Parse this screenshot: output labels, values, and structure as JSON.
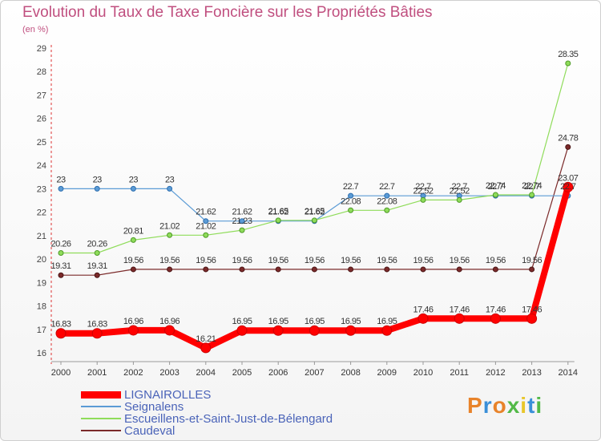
{
  "chart_data": {
    "type": "line",
    "title": "Evolution du Taux de Taxe Foncière sur les Propriétés Bâties",
    "subtitle": "(en %)",
    "xlabel": "",
    "ylabel": "",
    "x": [
      "2000",
      "2001",
      "2002",
      "2003",
      "2004",
      "2005",
      "2006",
      "2007",
      "2008",
      "2009",
      "2010",
      "2011",
      "2012",
      "2013",
      "2014"
    ],
    "ylim": [
      16,
      29
    ],
    "yticks": [
      16,
      17,
      18,
      19,
      20,
      21,
      22,
      23,
      24,
      25,
      26,
      27,
      28,
      29
    ],
    "grid": false,
    "legend_position": "bottom-left",
    "series": [
      {
        "name": "LIGNAIROLLES",
        "color": "#ff0000",
        "values": [
          16.83,
          16.83,
          16.96,
          16.96,
          16.21,
          16.95,
          16.95,
          16.95,
          16.95,
          16.95,
          17.46,
          17.46,
          17.46,
          17.46,
          23.07
        ]
      },
      {
        "name": "Seignalens",
        "color": "#5b9bd5",
        "values": [
          23,
          23,
          23,
          23,
          21.62,
          21.62,
          21.62,
          21.62,
          22.7,
          22.7,
          22.7,
          22.7,
          22.7,
          22.7,
          22.7
        ]
      },
      {
        "name": "Escueillens-et-Saint-Just-de-Bélengard",
        "color": "#8fdc5a",
        "values": [
          20.26,
          20.26,
          20.81,
          21.02,
          21.02,
          21.23,
          21.65,
          21.65,
          22.08,
          22.08,
          22.52,
          22.52,
          22.74,
          22.74,
          28.35
        ]
      },
      {
        "name": "Caudeval",
        "color": "#7b2a2a",
        "values": [
          19.31,
          19.31,
          19.56,
          19.56,
          19.56,
          19.56,
          19.56,
          19.56,
          19.56,
          19.56,
          19.56,
          19.56,
          19.56,
          19.56,
          24.78
        ]
      }
    ],
    "point_labels": {
      "LIGNAIROLLES": [
        "16.83",
        "16.83",
        "16.96",
        "16.96",
        "16.21",
        "16.95",
        "16.95",
        "16.95",
        "16.95",
        "16.95",
        "17.46",
        "17.46",
        "17.46",
        "17.46",
        "23.07"
      ],
      "Seignalens": [
        "23",
        "23",
        "23",
        "23",
        "21.62",
        "21.62",
        "21.62",
        "21.62",
        "22.7",
        "22.7",
        "22.7",
        "22.7",
        "22.7",
        "22.7",
        "22.7"
      ],
      "Escueillens-et-Saint-Just-de-Bélengard": [
        "20.26",
        "20.26",
        "20.81",
        "21.02",
        "21.02",
        "21.23",
        "21.65",
        "21.65",
        "22.08",
        "22.08",
        "22.52",
        "22.52",
        "22.74",
        "22.74",
        "28.35"
      ],
      "Caudeval": [
        "19.31",
        "19.31",
        "19.56",
        "19.56",
        "19.56",
        "19.56",
        "19.56",
        "19.56",
        "19.56",
        "19.56",
        "19.56",
        "19.56",
        "19.56",
        "19.56",
        "24.78"
      ]
    }
  },
  "logo": {
    "text": "Proxiti",
    "colors": [
      "#e8832a",
      "#3a8fd8",
      "#e8832a",
      "#52b947",
      "#e8c62a",
      "#3a8fd8",
      "#52b947"
    ]
  }
}
